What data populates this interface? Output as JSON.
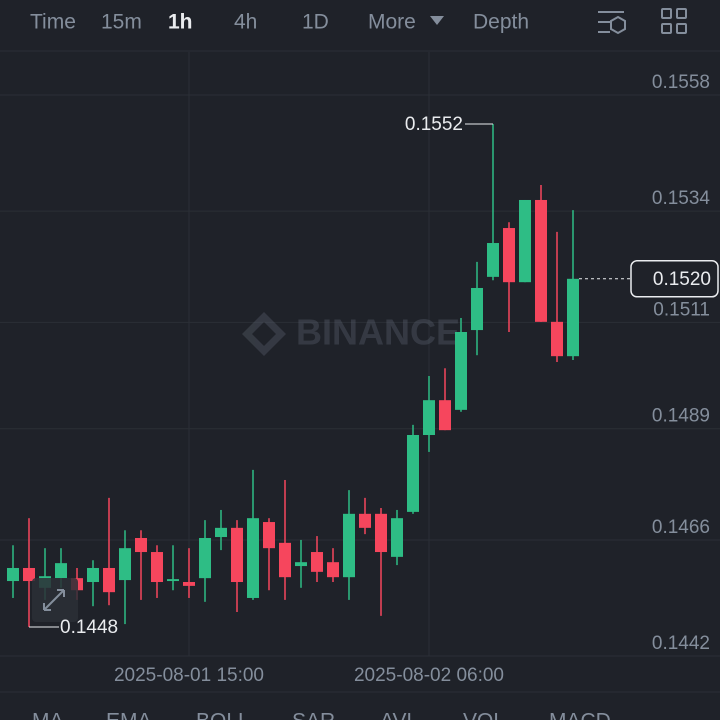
{
  "toolbar": {
    "tabs": [
      "Time",
      "15m",
      "1h",
      "4h",
      "1D",
      "More",
      "Depth"
    ],
    "active": "1h"
  },
  "watermark": "BINANCE",
  "indicators": [
    "MA",
    "EMA",
    "BOLL",
    "SAR",
    "AVL",
    "VOL",
    "MACD"
  ],
  "chart_data": {
    "type": "candlestick",
    "up_color": "#2ebd85",
    "down_color": "#f6465d",
    "categories": [
      null,
      null,
      null,
      null,
      null,
      null,
      null,
      null,
      null,
      null,
      null,
      "2025-08-01 15:00",
      null,
      null,
      null,
      null,
      null,
      null,
      null,
      null,
      null,
      null,
      null,
      null,
      null,
      null,
      "2025-08-02 06:00",
      null,
      null,
      null,
      null,
      null,
      null,
      null,
      null,
      null
    ],
    "open": [
      0.14575,
      0.14602,
      0.14561,
      0.14581,
      0.14581,
      0.14573,
      0.14602,
      0.14577,
      0.14664,
      0.14635,
      0.14575,
      0.14573,
      0.14581,
      0.14666,
      0.14685,
      0.1454,
      0.14697,
      0.14654,
      0.14606,
      0.14635,
      0.14614,
      0.14583,
      0.14714,
      0.14714,
      0.14625,
      0.14718,
      0.14877,
      0.14949,
      0.14929,
      0.15094,
      0.15204,
      0.15305,
      0.15193,
      0.15363,
      0.15111,
      0.1504
    ],
    "high": [
      0.14649,
      0.14705,
      0.14643,
      0.14643,
      0.14602,
      0.14618,
      0.14747,
      0.1468,
      0.1468,
      0.14649,
      0.14649,
      0.14643,
      0.14701,
      0.14722,
      0.14701,
      0.14805,
      0.14705,
      0.14784,
      0.1466,
      0.14668,
      0.14643,
      0.14763,
      0.14747,
      0.14726,
      0.14722,
      0.14898,
      0.14999,
      0.15015,
      0.15119,
      0.15235,
      0.1552,
      0.15317,
      0.15363,
      0.15394,
      0.15297,
      0.15342
    ],
    "low": [
      0.1454,
      0.1448,
      0.14536,
      0.14561,
      0.14536,
      0.14523,
      0.14525,
      0.14486,
      0.14536,
      0.1454,
      0.14556,
      0.1454,
      0.14532,
      0.14639,
      0.14511,
      0.14536,
      0.14556,
      0.14536,
      0.14561,
      0.14573,
      0.14573,
      0.14536,
      0.14672,
      0.14503,
      0.14608,
      0.14714,
      0.14842,
      0.14887,
      0.14925,
      0.15042,
      0.15197,
      0.1509,
      0.15193,
      0.15111,
      0.15028,
      0.15032
    ],
    "close": [
      0.14602,
      0.14575,
      0.14585,
      0.14612,
      0.14556,
      0.14602,
      0.14552,
      0.14643,
      0.14635,
      0.14573,
      0.14579,
      0.14565,
      0.14664,
      0.14685,
      0.14573,
      0.14705,
      0.14643,
      0.14583,
      0.14614,
      0.14594,
      0.14583,
      0.14714,
      0.14685,
      0.14635,
      0.14705,
      0.14877,
      0.14949,
      0.14887,
      0.1509,
      0.15181,
      0.15274,
      0.15193,
      0.15363,
      0.15111,
      0.1504,
      0.152
    ],
    "last_price": {
      "value": 0.152,
      "label": "0.1520"
    },
    "ylim": [
      0.1442,
      0.15669
    ],
    "yticks": [
      0.1558,
      0.1534,
      0.1511,
      0.1489,
      0.1466,
      0.1442
    ],
    "grid": true
  }
}
